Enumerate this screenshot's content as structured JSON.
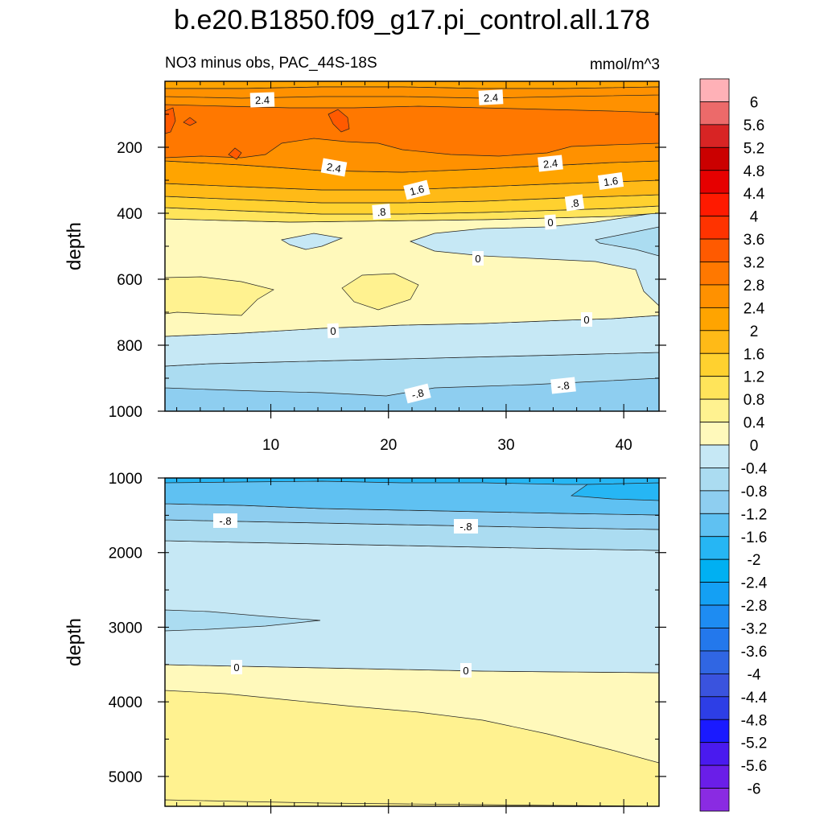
{
  "chart_data": {
    "type": "contour",
    "title": "b.e20.B1850.f09_g17.pi_control.all.178",
    "subtitle_left": "NO3 minus obs, PAC_44S-18S",
    "units": "mmol/m^3",
    "colorbar": {
      "levels": [
        "6",
        "5.6",
        "5.2",
        "4.8",
        "4.4",
        "4",
        "3.6",
        "3.2",
        "2.8",
        "2.4",
        "2",
        "1.6",
        "1.2",
        "0.8",
        "0.4",
        "0",
        "-0.4",
        "-0.8",
        "-1.2",
        "-1.6",
        "-2",
        "-2.4",
        "-2.8",
        "-3.2",
        "-3.6",
        "-4",
        "-4.4",
        "-4.8",
        "-5.2",
        "-5.6",
        "-6"
      ],
      "colors": [
        "#ffb1b7",
        "#ec6a6a",
        "#d82424",
        "#cb0000",
        "#e60000",
        "#ff1a00",
        "#ff3300",
        "#ff5a00",
        "#ff7800",
        "#ff9100",
        "#ffa400",
        "#ffba17",
        "#ffd12f",
        "#ffe45a",
        "#fff290",
        "#fff9bb",
        "#c6e8f5",
        "#abdcf1",
        "#8ecef0",
        "#5fc1f2",
        "#26b6f4",
        "#00b0f2",
        "#14a0f4",
        "#1e8cf2",
        "#2378ec",
        "#3066e3",
        "#3a53de",
        "#2d3ee6",
        "#1a1aff",
        "#4a1aef",
        "#6a1ee8",
        "#8a2be2"
      ]
    },
    "panels": [
      {
        "ylabel": "depth",
        "ylim": [
          0,
          1000
        ],
        "yticks": [
          "200",
          "400",
          "600",
          "800",
          "1000"
        ],
        "xlim": [
          1,
          43
        ],
        "xticks": [
          "10",
          "20",
          "30",
          "40"
        ],
        "contour_labels": [
          "2.4",
          "2.4",
          "2.4",
          "2.4",
          "1.6",
          "1.6",
          ".8",
          ".8",
          "0",
          "0",
          "0",
          "0",
          "-.8",
          "-.8"
        ]
      },
      {
        "ylabel": "depth",
        "ylim": [
          1000,
          5400
        ],
        "yticks": [
          "1000",
          "2000",
          "3000",
          "4000",
          "5000"
        ],
        "xlim": [
          1,
          43
        ],
        "xticks": [],
        "contour_labels": [
          "-.8",
          "-.8",
          "0",
          "0"
        ]
      }
    ]
  }
}
